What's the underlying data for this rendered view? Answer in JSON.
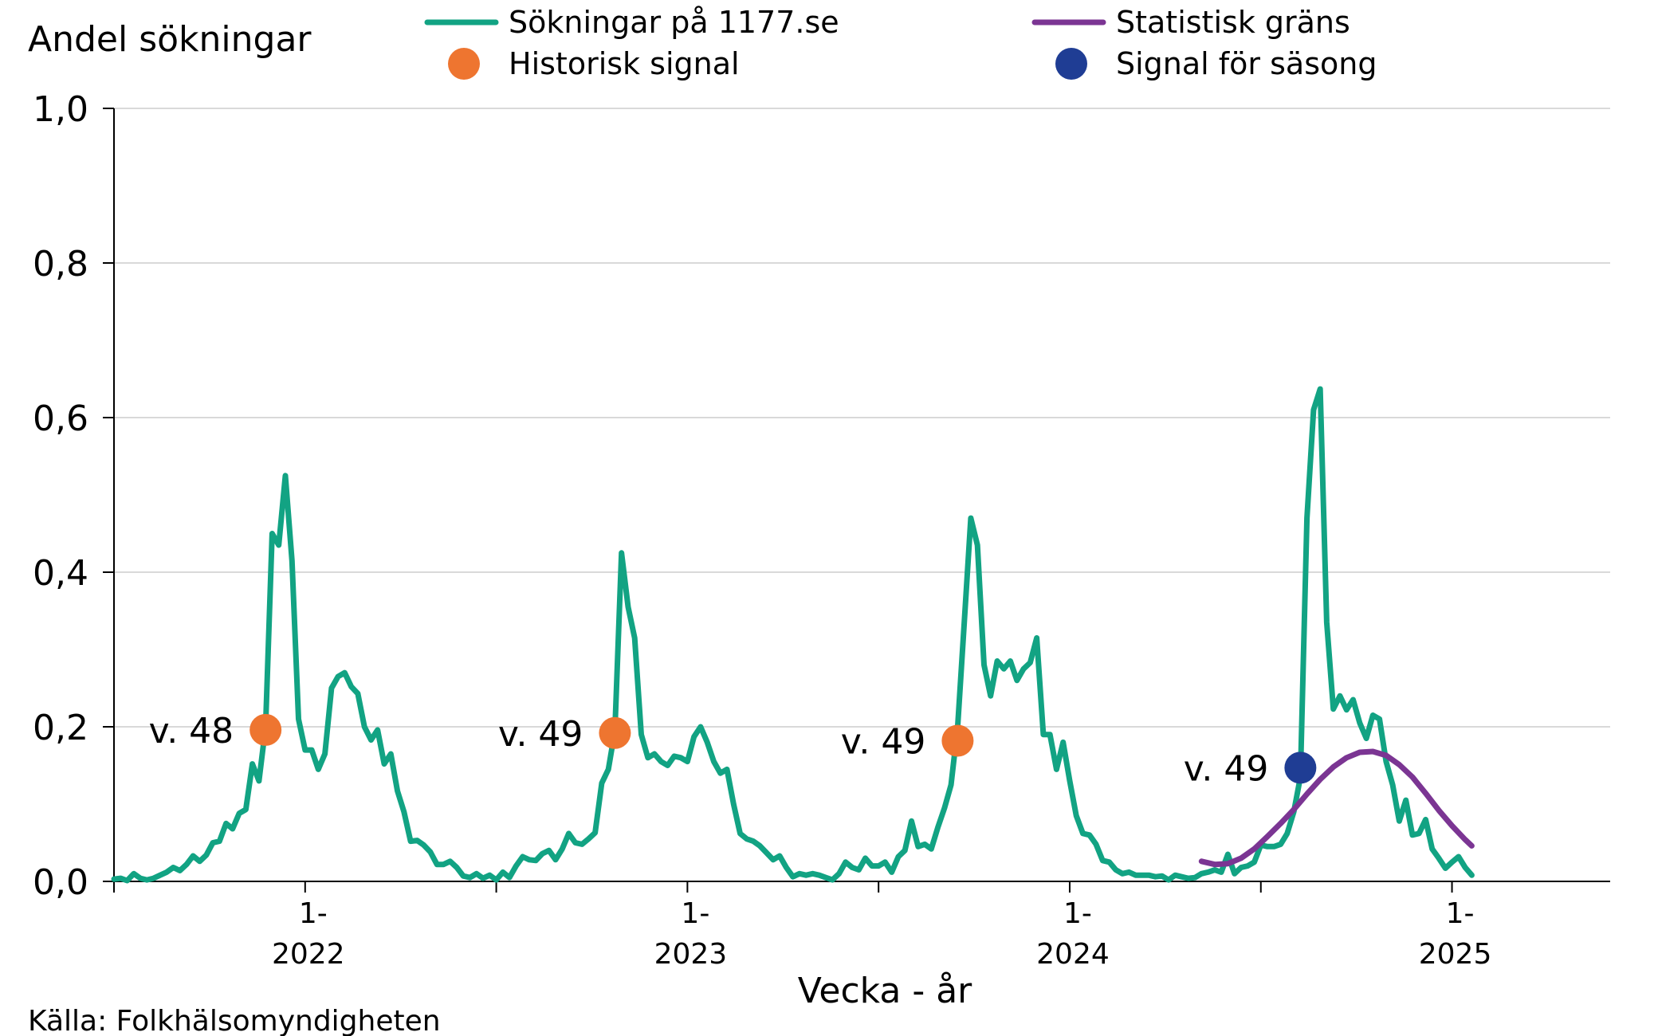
{
  "chart_data": {
    "type": "line",
    "ylabel": "Andel sökningar",
    "xlabel": "Vecka - år",
    "source": "Källa: Folkhälsomyndigheten",
    "ylim": [
      0,
      1.0
    ],
    "y_ticks": [
      {
        "value": 0.0,
        "label": "0,0"
      },
      {
        "value": 0.2,
        "label": "0,2"
      },
      {
        "value": 0.4,
        "label": "0,4"
      },
      {
        "value": 0.6,
        "label": "0,6"
      },
      {
        "value": 0.8,
        "label": "0,8"
      },
      {
        "value": 1.0,
        "label": "1,0"
      }
    ],
    "x_week_range": [
      1,
      228
    ],
    "x_ticks": [
      {
        "week": 30,
        "line1": "1-",
        "line2": "2022"
      },
      {
        "week": 88,
        "line1": "1-",
        "line2": "2023"
      },
      {
        "week": 146,
        "line1": "1-",
        "line2": "2024"
      },
      {
        "week": 204,
        "line1": "1-",
        "line2": "2025"
      }
    ],
    "x_minor_ticks": [
      1,
      59,
      117,
      175
    ],
    "grid": true,
    "legend_position": "top",
    "legend": [
      {
        "key": "searches",
        "label": "Sökningar på 1177.se",
        "kind": "line",
        "color": "#12a383"
      },
      {
        "key": "limit",
        "label": "Statistisk gräns",
        "kind": "line",
        "color": "#7b3593"
      },
      {
        "key": "historical",
        "label": "Historisk signal",
        "kind": "marker",
        "color": "#ee7530"
      },
      {
        "key": "season",
        "label": "Signal för säsong",
        "kind": "marker",
        "color": "#1f3d94"
      }
    ],
    "series": [
      {
        "name": "Sökningar på 1177.se",
        "color": "#12a383",
        "points": [
          [
            1,
            0.003
          ],
          [
            2,
            0.004
          ],
          [
            3,
            0.001
          ],
          [
            4,
            0.01
          ],
          [
            5,
            0.004
          ],
          [
            6,
            0.002
          ],
          [
            7,
            0.004
          ],
          [
            8,
            0.008
          ],
          [
            9,
            0.012
          ],
          [
            10,
            0.018
          ],
          [
            11,
            0.014
          ],
          [
            12,
            0.022
          ],
          [
            13,
            0.033
          ],
          [
            14,
            0.026
          ],
          [
            15,
            0.034
          ],
          [
            16,
            0.05
          ],
          [
            17,
            0.052
          ],
          [
            18,
            0.075
          ],
          [
            19,
            0.068
          ],
          [
            20,
            0.088
          ],
          [
            21,
            0.093
          ],
          [
            22,
            0.152
          ],
          [
            23,
            0.13
          ],
          [
            24,
            0.2
          ],
          [
            25,
            0.45
          ],
          [
            26,
            0.435
          ],
          [
            27,
            0.525
          ],
          [
            28,
            0.415
          ],
          [
            29,
            0.21
          ],
          [
            30,
            0.17
          ],
          [
            31,
            0.17
          ],
          [
            32,
            0.145
          ],
          [
            33,
            0.165
          ],
          [
            34,
            0.25
          ],
          [
            35,
            0.265
          ],
          [
            36,
            0.27
          ],
          [
            37,
            0.252
          ],
          [
            38,
            0.243
          ],
          [
            39,
            0.2
          ],
          [
            40,
            0.183
          ],
          [
            41,
            0.196
          ],
          [
            42,
            0.152
          ],
          [
            43,
            0.165
          ],
          [
            44,
            0.117
          ],
          [
            45,
            0.09
          ],
          [
            46,
            0.052
          ],
          [
            47,
            0.053
          ],
          [
            48,
            0.047
          ],
          [
            49,
            0.038
          ],
          [
            50,
            0.022
          ],
          [
            51,
            0.022
          ],
          [
            52,
            0.026
          ],
          [
            53,
            0.018
          ],
          [
            54,
            0.007
          ],
          [
            55,
            0.005
          ],
          [
            56,
            0.01
          ],
          [
            57,
            0.004
          ],
          [
            58,
            0.008
          ],
          [
            59,
            0.002
          ],
          [
            60,
            0.012
          ],
          [
            61,
            0.005
          ],
          [
            62,
            0.02
          ],
          [
            63,
            0.032
          ],
          [
            64,
            0.028
          ],
          [
            65,
            0.027
          ],
          [
            66,
            0.036
          ],
          [
            67,
            0.04
          ],
          [
            68,
            0.028
          ],
          [
            69,
            0.042
          ],
          [
            70,
            0.062
          ],
          [
            71,
            0.05
          ],
          [
            72,
            0.048
          ],
          [
            73,
            0.055
          ],
          [
            74,
            0.063
          ],
          [
            75,
            0.127
          ],
          [
            76,
            0.145
          ],
          [
            77,
            0.195
          ],
          [
            78,
            0.425
          ],
          [
            79,
            0.355
          ],
          [
            80,
            0.315
          ],
          [
            81,
            0.19
          ],
          [
            82,
            0.16
          ],
          [
            83,
            0.165
          ],
          [
            84,
            0.155
          ],
          [
            85,
            0.15
          ],
          [
            86,
            0.162
          ],
          [
            87,
            0.16
          ],
          [
            88,
            0.155
          ],
          [
            89,
            0.187
          ],
          [
            90,
            0.2
          ],
          [
            91,
            0.18
          ],
          [
            92,
            0.155
          ],
          [
            93,
            0.14
          ],
          [
            94,
            0.145
          ],
          [
            95,
            0.1
          ],
          [
            96,
            0.062
          ],
          [
            97,
            0.055
          ],
          [
            98,
            0.052
          ],
          [
            99,
            0.046
          ],
          [
            100,
            0.037
          ],
          [
            101,
            0.028
          ],
          [
            102,
            0.033
          ],
          [
            103,
            0.018
          ],
          [
            104,
            0.006
          ],
          [
            105,
            0.01
          ],
          [
            106,
            0.008
          ],
          [
            107,
            0.01
          ],
          [
            108,
            0.008
          ],
          [
            109,
            0.005
          ],
          [
            110,
            0.002
          ],
          [
            111,
            0.01
          ],
          [
            112,
            0.025
          ],
          [
            113,
            0.018
          ],
          [
            114,
            0.015
          ],
          [
            115,
            0.03
          ],
          [
            116,
            0.02
          ],
          [
            117,
            0.02
          ],
          [
            118,
            0.025
          ],
          [
            119,
            0.012
          ],
          [
            120,
            0.032
          ],
          [
            121,
            0.04
          ],
          [
            122,
            0.078
          ],
          [
            123,
            0.045
          ],
          [
            124,
            0.048
          ],
          [
            125,
            0.042
          ],
          [
            126,
            0.07
          ],
          [
            127,
            0.095
          ],
          [
            128,
            0.125
          ],
          [
            129,
            0.2
          ],
          [
            130,
            0.335
          ],
          [
            131,
            0.47
          ],
          [
            132,
            0.435
          ],
          [
            133,
            0.28
          ],
          [
            134,
            0.24
          ],
          [
            135,
            0.285
          ],
          [
            136,
            0.275
          ],
          [
            137,
            0.285
          ],
          [
            138,
            0.26
          ],
          [
            139,
            0.275
          ],
          [
            140,
            0.283
          ],
          [
            141,
            0.315
          ],
          [
            142,
            0.19
          ],
          [
            143,
            0.19
          ],
          [
            144,
            0.145
          ],
          [
            145,
            0.18
          ],
          [
            146,
            0.13
          ],
          [
            147,
            0.085
          ],
          [
            148,
            0.062
          ],
          [
            149,
            0.06
          ],
          [
            150,
            0.048
          ],
          [
            151,
            0.027
          ],
          [
            152,
            0.025
          ],
          [
            153,
            0.015
          ],
          [
            154,
            0.01
          ],
          [
            155,
            0.012
          ],
          [
            156,
            0.008
          ],
          [
            157,
            0.008
          ],
          [
            158,
            0.008
          ],
          [
            159,
            0.006
          ],
          [
            160,
            0.007
          ],
          [
            161,
            0.002
          ],
          [
            162,
            0.008
          ],
          [
            163,
            0.006
          ],
          [
            164,
            0.004
          ],
          [
            165,
            0.005
          ],
          [
            166,
            0.01
          ],
          [
            167,
            0.012
          ],
          [
            168,
            0.015
          ],
          [
            169,
            0.012
          ],
          [
            170,
            0.035
          ],
          [
            171,
            0.01
          ],
          [
            172,
            0.018
          ],
          [
            173,
            0.02
          ],
          [
            174,
            0.025
          ],
          [
            175,
            0.047
          ],
          [
            176,
            0.045
          ],
          [
            177,
            0.045
          ],
          [
            178,
            0.048
          ],
          [
            179,
            0.062
          ],
          [
            180,
            0.09
          ],
          [
            181,
            0.135
          ],
          [
            182,
            0.47
          ],
          [
            183,
            0.61
          ],
          [
            184,
            0.637
          ],
          [
            185,
            0.335
          ],
          [
            186,
            0.223
          ],
          [
            187,
            0.24
          ],
          [
            188,
            0.222
          ],
          [
            189,
            0.235
          ],
          [
            190,
            0.205
          ],
          [
            191,
            0.185
          ],
          [
            192,
            0.215
          ],
          [
            193,
            0.21
          ],
          [
            194,
            0.155
          ],
          [
            195,
            0.125
          ],
          [
            196,
            0.078
          ],
          [
            197,
            0.105
          ],
          [
            198,
            0.06
          ],
          [
            199,
            0.062
          ],
          [
            200,
            0.08
          ],
          [
            201,
            0.042
          ],
          [
            202,
            0.03
          ],
          [
            203,
            0.017
          ],
          [
            204,
            0.025
          ],
          [
            205,
            0.032
          ],
          [
            206,
            0.018
          ],
          [
            207,
            0.008
          ]
        ]
      },
      {
        "name": "Statistisk gräns",
        "color": "#7b3593",
        "points": [
          [
            166,
            0.026
          ],
          [
            168,
            0.022
          ],
          [
            170,
            0.023
          ],
          [
            172,
            0.03
          ],
          [
            174,
            0.042
          ],
          [
            176,
            0.058
          ],
          [
            178,
            0.075
          ],
          [
            180,
            0.093
          ],
          [
            182,
            0.113
          ],
          [
            184,
            0.132
          ],
          [
            186,
            0.148
          ],
          [
            188,
            0.16
          ],
          [
            190,
            0.167
          ],
          [
            192,
            0.168
          ],
          [
            194,
            0.163
          ],
          [
            196,
            0.151
          ],
          [
            198,
            0.135
          ],
          [
            200,
            0.114
          ],
          [
            202,
            0.092
          ],
          [
            204,
            0.072
          ],
          [
            206,
            0.054
          ],
          [
            207,
            0.046
          ]
        ]
      }
    ],
    "signals": [
      {
        "kind": "historical",
        "week": 24,
        "value": 0.196,
        "label": "v. 48"
      },
      {
        "kind": "historical",
        "week": 77,
        "value": 0.192,
        "label": "v. 49"
      },
      {
        "kind": "historical",
        "week": 129,
        "value": 0.182,
        "label": "v. 49"
      },
      {
        "kind": "season",
        "week": 181,
        "value": 0.147,
        "label": "v. 49"
      }
    ]
  }
}
